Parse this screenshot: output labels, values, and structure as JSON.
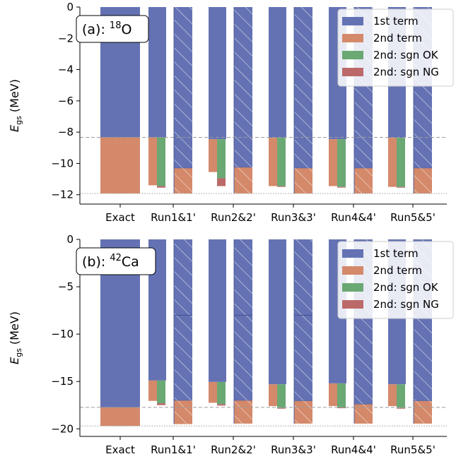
{
  "figure": {
    "legend_labels": [
      "1st term",
      "2nd term",
      "2nd: sgn OK",
      "2nd: sgn NG"
    ],
    "colors": {
      "first": "#6472b4",
      "second": "#d4896a",
      "ok": "#6aa874",
      "ng": "#bb6a69",
      "exact_line": "#9a9a9a",
      "hatch": "#ffffff"
    }
  },
  "chart_data": [
    {
      "type": "bar",
      "panel_label_prefix": "(a): ",
      "panel_label_sup": "18",
      "panel_label_suffix": "O",
      "ylabel_main": "E",
      "ylabel_sub": "gs",
      "ylabel_unit": " (MeV)",
      "categories": [
        "Exact",
        "Run1&1'",
        "Run2&2'",
        "Run3&3'",
        "Run4&4'",
        "Run5&5'"
      ],
      "ylim": [
        -12.6,
        0
      ],
      "yticks": [
        0,
        -2,
        -4,
        -6,
        -8,
        -10,
        -12
      ],
      "ytick_labels": [
        "0",
        "−2",
        "−4",
        "−6",
        "−8",
        "−10",
        "−12"
      ],
      "legend_position": "top-right",
      "exact_first": -8.33,
      "exact_total": -11.92,
      "runs": [
        {
          "first": -8.33,
          "second": -11.4,
          "ok": -11.45,
          "ng": -11.55,
          "hatched_mid": -10.3,
          "hatched_total": -11.92
        },
        {
          "first": -8.45,
          "second": -10.55,
          "ok": -10.95,
          "ng": -11.45,
          "hatched_mid": -10.25,
          "hatched_total": -11.92
        },
        {
          "first": -8.36,
          "second": -11.45,
          "ok": -11.45,
          "ng": -11.5,
          "hatched_mid": -10.3,
          "hatched_total": -11.92
        },
        {
          "first": -8.45,
          "second": -11.45,
          "ok": -11.5,
          "ng": -11.5,
          "hatched_mid": -10.3,
          "hatched_total": -11.92
        },
        {
          "first": -8.36,
          "second": -11.5,
          "ok": -11.5,
          "ng": -11.55,
          "hatched_mid": -10.3,
          "hatched_total": -11.92
        }
      ]
    },
    {
      "type": "bar",
      "panel_label_prefix": "(b): ",
      "panel_label_sup": "42",
      "panel_label_suffix": "Ca",
      "ylabel_main": "E",
      "ylabel_sub": "gs",
      "ylabel_unit": " (MeV)",
      "categories": [
        "Exact",
        "Run1&1'",
        "Run2&2'",
        "Run3&3'",
        "Run4&4'",
        "Run5&5'"
      ],
      "ylim": [
        -20.8,
        0
      ],
      "yticks": [
        0,
        -5,
        -10,
        -15,
        -20
      ],
      "ytick_labels": [
        "0",
        "−5",
        "−10",
        "−15",
        "−20"
      ],
      "legend_position": "top-right",
      "exact_first": -17.73,
      "exact_total": -19.7,
      "runs": [
        {
          "first": -14.9,
          "second": -17.05,
          "ok": -17.3,
          "ng": -17.5,
          "hatched_mid": -17.0,
          "hatched_total": -19.5,
          "hatched_line": -8.0
        },
        {
          "first": -15.05,
          "second": -17.25,
          "ok": -17.4,
          "ng": -17.55,
          "hatched_mid": -17.0,
          "hatched_total": -19.45,
          "hatched_line": -8.0
        },
        {
          "first": -15.3,
          "second": -17.6,
          "ok": -17.8,
          "ng": -17.85,
          "hatched_mid": -17.05,
          "hatched_total": -19.45,
          "hatched_line": -8.0
        },
        {
          "first": -15.2,
          "second": -17.6,
          "ok": -17.75,
          "ng": -17.8,
          "hatched_mid": -17.4,
          "hatched_total": -19.45
        },
        {
          "first": -15.3,
          "second": -17.6,
          "ok": -17.8,
          "ng": -17.8,
          "hatched_mid": -17.05,
          "hatched_total": -19.45
        }
      ]
    }
  ]
}
